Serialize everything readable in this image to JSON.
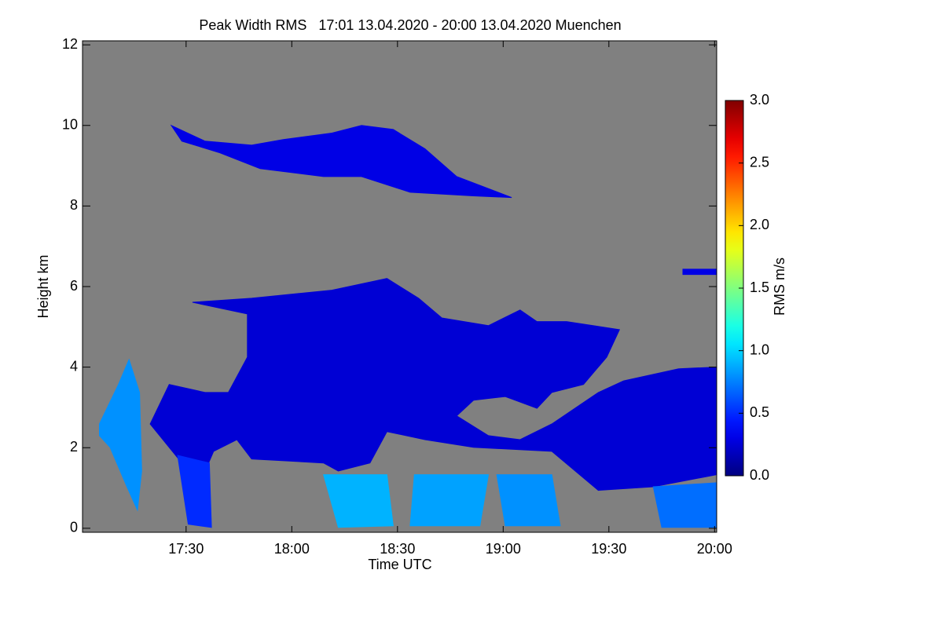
{
  "chart_data": {
    "type": "heatmap",
    "title": "Peak Width RMS   17:01 13.04.2020 - 20:00 13.04.2020 Muenchen",
    "xlabel": "Time UTC",
    "ylabel": "Height km",
    "xlim": [
      17.01,
      20.01
    ],
    "ylim": [
      -0.1,
      12.1
    ],
    "xticks": [
      {
        "value": 17.5,
        "label": "17:30"
      },
      {
        "value": 18,
        "label": "18:00"
      },
      {
        "value": 18.5,
        "label": "18:30"
      },
      {
        "value": 19,
        "label": "19:00"
      },
      {
        "value": 19.5,
        "label": "19:30"
      },
      {
        "value": 20,
        "label": "20:00"
      }
    ],
    "yticks": [
      0,
      2,
      4,
      6,
      8,
      10,
      12
    ],
    "background": "#808080",
    "colormap": "jet",
    "colorbar": {
      "label": "RMS m/s",
      "lim": [
        0,
        3
      ],
      "ticks": [
        {
          "value": 0,
          "label": "0.0"
        },
        0.5,
        {
          "value": 1,
          "label": "1.0"
        },
        1.5,
        {
          "value": 2,
          "label": "2.0"
        },
        2.5,
        {
          "value": 3,
          "label": "3.0"
        }
      ]
    },
    "regions": [
      {
        "value": 0.3,
        "points": [
          [
            17.43,
            10.0
          ],
          [
            17.59,
            9.61
          ],
          [
            17.81,
            9.51
          ],
          [
            17.96,
            9.65
          ],
          [
            18.19,
            9.81
          ],
          [
            18.33,
            10.0
          ],
          [
            18.48,
            9.9
          ],
          [
            18.63,
            9.42
          ],
          [
            18.78,
            8.73
          ],
          [
            19.04,
            8.21
          ],
          [
            18.86,
            8.25
          ],
          [
            18.56,
            8.34
          ],
          [
            18.33,
            8.73
          ],
          [
            18.15,
            8.73
          ],
          [
            17.85,
            8.93
          ],
          [
            17.66,
            9.32
          ],
          [
            17.48,
            9.61
          ]
        ]
      },
      {
        "value": 0.25,
        "points": [
          [
            17.53,
            5.61
          ],
          [
            17.81,
            5.71
          ],
          [
            18.19,
            5.91
          ],
          [
            18.45,
            6.2
          ],
          [
            18.6,
            5.71
          ],
          [
            18.71,
            5.22
          ],
          [
            18.93,
            5.03
          ],
          [
            19.08,
            5.42
          ],
          [
            19.16,
            5.13
          ],
          [
            19.3,
            5.13
          ],
          [
            19.55,
            4.93
          ],
          [
            19.49,
            4.25
          ],
          [
            19.38,
            3.57
          ],
          [
            19.23,
            3.37
          ],
          [
            19.16,
            2.98
          ],
          [
            19.01,
            3.27
          ],
          [
            18.86,
            3.18
          ],
          [
            18.78,
            2.79
          ],
          [
            18.93,
            2.3
          ],
          [
            19.08,
            2.2
          ],
          [
            19.23,
            2.59
          ],
          [
            19.45,
            3.37
          ],
          [
            19.57,
            3.66
          ],
          [
            19.83,
            3.96
          ],
          [
            20.01,
            4.0
          ],
          [
            20.01,
            1.33
          ],
          [
            19.71,
            1.03
          ],
          [
            19.45,
            0.94
          ],
          [
            19.23,
            1.91
          ],
          [
            18.86,
            2.01
          ],
          [
            18.63,
            2.2
          ],
          [
            18.45,
            2.4
          ],
          [
            18.37,
            1.62
          ],
          [
            18.22,
            1.42
          ],
          [
            18.15,
            1.62
          ],
          [
            17.81,
            1.72
          ],
          [
            17.74,
            2.2
          ],
          [
            17.63,
            1.91
          ],
          [
            17.59,
            1.42
          ],
          [
            17.48,
            1.62
          ],
          [
            17.33,
            2.59
          ],
          [
            17.42,
            3.57
          ],
          [
            17.59,
            3.37
          ],
          [
            17.7,
            3.37
          ],
          [
            17.79,
            4.25
          ],
          [
            17.79,
            5.32
          ]
        ]
      },
      {
        "value": 0.8,
        "points": [
          [
            17.09,
            2.59
          ],
          [
            17.18,
            3.57
          ],
          [
            17.23,
            4.19
          ],
          [
            17.28,
            3.37
          ],
          [
            17.29,
            1.42
          ],
          [
            17.27,
            0.45
          ],
          [
            17.22,
            1.03
          ],
          [
            17.14,
            2.01
          ],
          [
            17.09,
            2.3
          ]
        ]
      },
      {
        "value": 0.9,
        "points": [
          [
            18.15,
            1.33
          ],
          [
            18.45,
            1.33
          ],
          [
            18.48,
            0.06
          ],
          [
            18.22,
            0.02
          ]
        ]
      },
      {
        "value": 0.85,
        "points": [
          [
            18.58,
            1.33
          ],
          [
            18.93,
            1.33
          ],
          [
            18.89,
            0.06
          ],
          [
            18.56,
            0.06
          ]
        ]
      },
      {
        "value": 0.8,
        "points": [
          [
            18.97,
            1.33
          ],
          [
            19.23,
            1.33
          ],
          [
            19.27,
            0.06
          ],
          [
            19.01,
            0.06
          ]
        ]
      },
      {
        "value": 0.7,
        "points": [
          [
            19.71,
            1.03
          ],
          [
            20.01,
            1.13
          ],
          [
            20.01,
            0.02
          ],
          [
            19.75,
            0.02
          ]
        ]
      },
      {
        "value": 0.5,
        "points": [
          [
            17.46,
            1.81
          ],
          [
            17.61,
            1.62
          ],
          [
            17.62,
            0.02
          ],
          [
            17.51,
            0.1
          ]
        ]
      },
      {
        "value": 0.3,
        "points": [
          [
            19.85,
            6.43
          ],
          [
            20.01,
            6.43
          ],
          [
            20.01,
            6.3
          ],
          [
            19.85,
            6.3
          ]
        ]
      }
    ]
  }
}
